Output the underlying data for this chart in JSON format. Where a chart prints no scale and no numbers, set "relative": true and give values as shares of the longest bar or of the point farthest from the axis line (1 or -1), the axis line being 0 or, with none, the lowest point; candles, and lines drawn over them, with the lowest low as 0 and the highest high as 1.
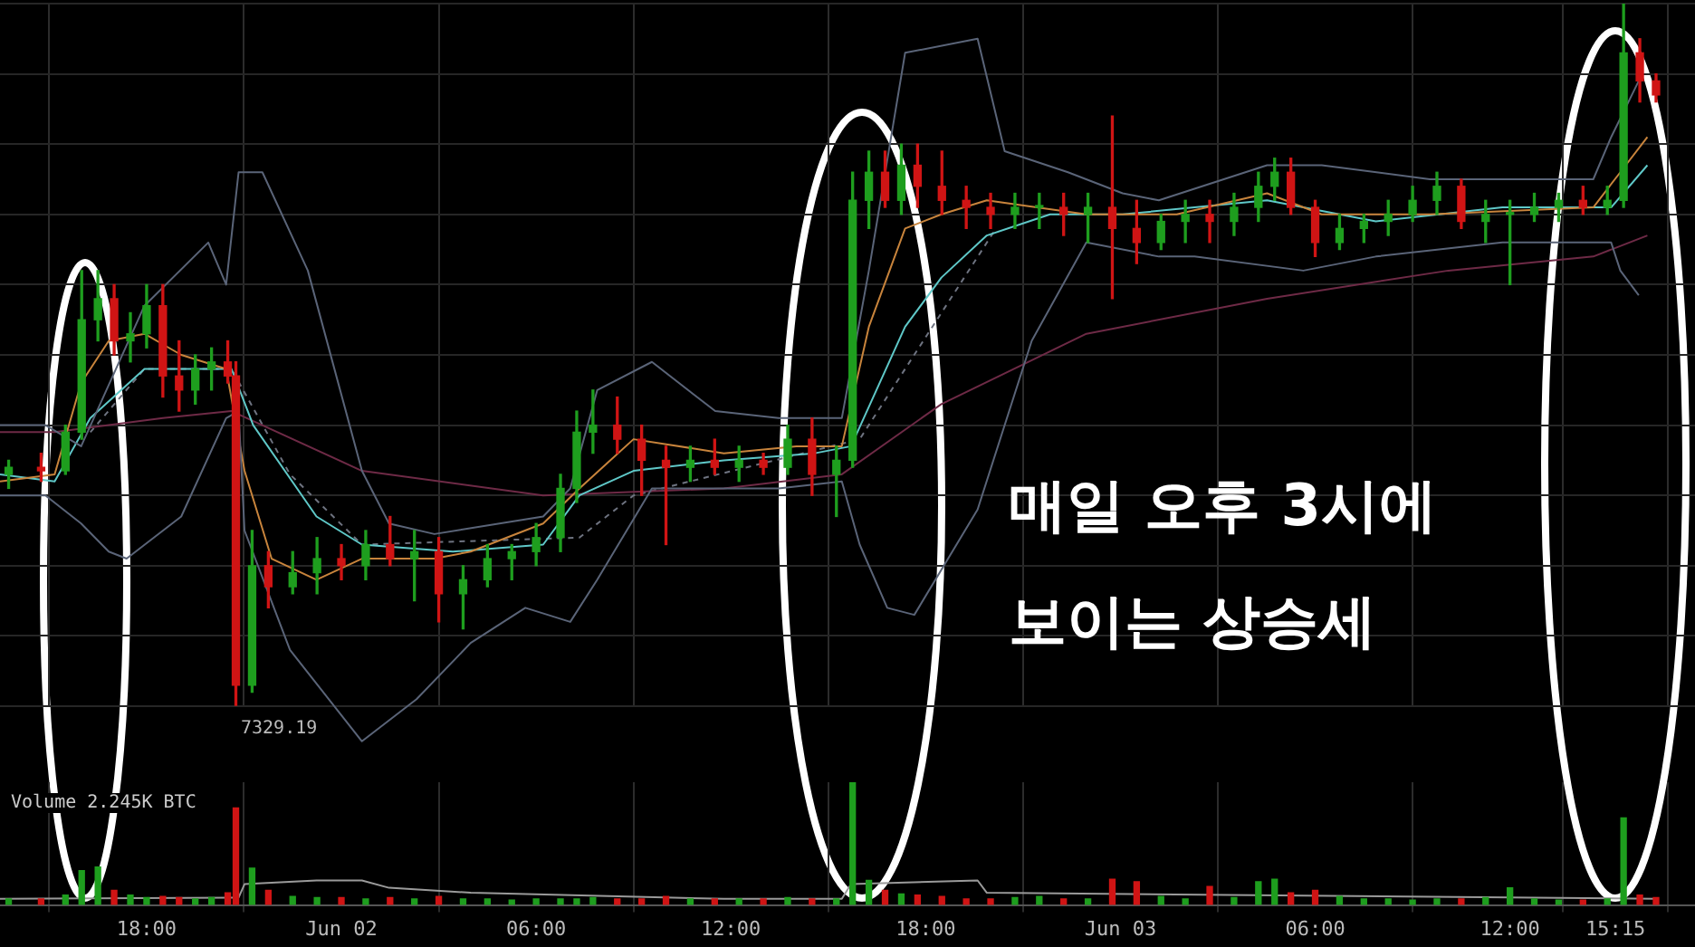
{
  "chart_data": [
    {
      "type": "candlestick",
      "relative": true,
      "tick_labels": false,
      "grid": true,
      "xlim": [
        "--06-01T13:29",
        "--06-03T17:42"
      ],
      "xticks": [
        {
          "value": "--06-01T18:00",
          "label": null
        },
        {
          "value": "--06-02T00:00",
          "label": null
        },
        {
          "value": "--06-02T06:00",
          "label": null
        },
        {
          "value": "--06-02T12:00",
          "label": null
        },
        {
          "value": "--06-02T18:00",
          "label": null
        },
        {
          "value": "--06-03T00:00",
          "label": null
        },
        {
          "value": "--06-03T06:00",
          "label": null
        },
        {
          "value": "--06-03T12:00",
          "label": null
        },
        {
          "value": "--06-03T15:15",
          "label": null
        }
      ],
      "x": [
        "--06-01T13:45",
        "--06-01T14:45",
        "--06-01T15:30",
        "--06-01T16:00",
        "--06-01T16:30",
        "--06-01T17:00",
        "--06-01T17:30",
        "--06-01T18:00",
        "--06-01T18:30",
        "--06-01T19:00",
        "--06-01T19:30",
        "--06-01T20:00",
        "--06-01T20:30",
        "--06-01T20:45",
        "--06-01T21:15",
        "--06-01T21:45",
        "--06-01T22:30",
        "--06-01T23:15",
        "--06-02T00:00",
        "--06-02T00:45",
        "--06-02T01:30",
        "--06-02T02:15",
        "--06-02T03:00",
        "--06-02T03:45",
        "--06-02T04:30",
        "--06-02T05:15",
        "--06-02T06:00",
        "--06-02T06:45",
        "--06-02T07:15",
        "--06-02T07:45",
        "--06-02T08:30",
        "--06-02T09:15",
        "--06-02T10:00",
        "--06-02T10:45",
        "--06-02T11:30",
        "--06-02T12:15",
        "--06-02T13:00",
        "--06-02T13:45",
        "--06-02T14:30",
        "--06-02T15:15",
        "--06-02T15:45",
        "--06-02T16:15",
        "--06-02T16:45",
        "--06-02T17:15",
        "--06-02T17:45",
        "--06-02T18:30",
        "--06-02T19:15",
        "--06-02T20:00",
        "--06-02T20:45",
        "--06-02T21:30",
        "--06-02T22:15",
        "--06-02T23:00",
        "--06-02T23:45",
        "--06-03T00:30",
        "--06-03T01:15",
        "--06-03T02:00",
        "--06-03T02:45",
        "--06-03T03:30",
        "--06-03T04:15",
        "--06-03T04:45",
        "--06-03T05:15",
        "--06-03T06:00",
        "--06-03T06:45",
        "--06-03T07:30",
        "--06-03T08:15",
        "--06-03T09:00",
        "--06-03T09:45",
        "--06-03T10:30",
        "--06-03T11:15",
        "--06-03T12:00",
        "--06-03T12:45",
        "--06-03T13:30",
        "--06-03T14:15",
        "--06-03T15:00",
        "--06-03T15:30",
        "--06-03T16:00",
        "--06-03T16:30"
      ],
      "ohlc": [
        [
          0.33,
          0.35,
          0.31,
          0.34
        ],
        [
          0.34,
          0.36,
          0.32,
          0.335
        ],
        [
          0.335,
          0.4,
          0.33,
          0.39
        ],
        [
          0.39,
          0.62,
          0.38,
          0.55
        ],
        [
          0.55,
          0.62,
          0.52,
          0.58
        ],
        [
          0.58,
          0.6,
          0.5,
          0.52
        ],
        [
          0.52,
          0.56,
          0.49,
          0.53
        ],
        [
          0.53,
          0.6,
          0.51,
          0.57
        ],
        [
          0.57,
          0.6,
          0.44,
          0.47
        ],
        [
          0.47,
          0.52,
          0.42,
          0.45
        ],
        [
          0.45,
          0.5,
          0.43,
          0.48
        ],
        [
          0.48,
          0.51,
          0.45,
          0.49
        ],
        [
          0.49,
          0.52,
          0.46,
          0.47
        ],
        [
          0.47,
          0.49,
          0,
          0.03
        ],
        [
          0.03,
          0.25,
          0.02,
          0.2
        ],
        [
          0.2,
          0.22,
          0.14,
          0.17
        ],
        [
          0.17,
          0.22,
          0.16,
          0.19
        ],
        [
          0.19,
          0.24,
          0.16,
          0.21
        ],
        [
          0.21,
          0.23,
          0.18,
          0.2
        ],
        [
          0.2,
          0.25,
          0.18,
          0.23
        ],
        [
          0.23,
          0.27,
          0.2,
          0.21
        ],
        [
          0.21,
          0.25,
          0.15,
          0.22
        ],
        [
          0.22,
          0.24,
          0.12,
          0.16
        ],
        [
          0.16,
          0.2,
          0.11,
          0.18
        ],
        [
          0.18,
          0.23,
          0.17,
          0.21
        ],
        [
          0.21,
          0.23,
          0.18,
          0.22
        ],
        [
          0.22,
          0.26,
          0.2,
          0.24
        ],
        [
          0.24,
          0.33,
          0.22,
          0.31
        ],
        [
          0.31,
          0.42,
          0.29,
          0.39
        ],
        [
          0.39,
          0.45,
          0.36,
          0.4
        ],
        [
          0.4,
          0.44,
          0.36,
          0.38
        ],
        [
          0.38,
          0.4,
          0.3,
          0.35
        ],
        [
          0.35,
          0.37,
          0.23,
          0.34
        ],
        [
          0.34,
          0.37,
          0.32,
          0.35
        ],
        [
          0.35,
          0.38,
          0.33,
          0.34
        ],
        [
          0.34,
          0.37,
          0.32,
          0.35
        ],
        [
          0.35,
          0.36,
          0.33,
          0.34
        ],
        [
          0.34,
          0.4,
          0.33,
          0.38
        ],
        [
          0.38,
          0.41,
          0.3,
          0.33
        ],
        [
          0.33,
          0.37,
          0.27,
          0.35
        ],
        [
          0.35,
          0.76,
          0.34,
          0.72
        ],
        [
          0.72,
          0.79,
          0.68,
          0.76
        ],
        [
          0.76,
          0.79,
          0.71,
          0.72
        ],
        [
          0.72,
          0.8,
          0.7,
          0.77
        ],
        [
          0.77,
          0.8,
          0.71,
          0.74
        ],
        [
          0.74,
          0.79,
          0.7,
          0.72
        ],
        [
          0.72,
          0.74,
          0.68,
          0.71
        ],
        [
          0.71,
          0.73,
          0.68,
          0.7
        ],
        [
          0.7,
          0.73,
          0.68,
          0.71
        ],
        [
          0.71,
          0.73,
          0.68,
          0.71
        ],
        [
          0.71,
          0.73,
          0.67,
          0.7
        ],
        [
          0.7,
          0.73,
          0.66,
          0.71
        ],
        [
          0.71,
          0.84,
          0.58,
          0.68
        ],
        [
          0.68,
          0.72,
          0.63,
          0.66
        ],
        [
          0.66,
          0.7,
          0.65,
          0.69
        ],
        [
          0.69,
          0.72,
          0.66,
          0.7
        ],
        [
          0.7,
          0.72,
          0.66,
          0.69
        ],
        [
          0.69,
          0.73,
          0.67,
          0.71
        ],
        [
          0.71,
          0.76,
          0.69,
          0.74
        ],
        [
          0.74,
          0.78,
          0.72,
          0.76
        ],
        [
          0.76,
          0.78,
          0.7,
          0.71
        ],
        [
          0.71,
          0.72,
          0.64,
          0.66
        ],
        [
          0.66,
          0.7,
          0.65,
          0.68
        ],
        [
          0.68,
          0.7,
          0.66,
          0.69
        ],
        [
          0.69,
          0.72,
          0.67,
          0.7
        ],
        [
          0.7,
          0.74,
          0.69,
          0.72
        ],
        [
          0.72,
          0.76,
          0.7,
          0.74
        ],
        [
          0.74,
          0.75,
          0.68,
          0.69
        ],
        [
          0.69,
          0.72,
          0.66,
          0.7
        ],
        [
          0.7,
          0.72,
          0.6,
          0.7
        ],
        [
          0.7,
          0.73,
          0.69,
          0.71
        ],
        [
          0.71,
          0.73,
          0.69,
          0.72
        ],
        [
          0.72,
          0.74,
          0.7,
          0.71
        ],
        [
          0.71,
          0.74,
          0.7,
          0.72
        ],
        [
          0.72,
          1,
          0.71,
          0.93
        ],
        [
          0.93,
          0.95,
          0.86,
          0.89
        ],
        [
          0.89,
          0.9,
          0.86,
          0.87
        ]
      ],
      "colors": [
        "#1e9e1e",
        "#d01414",
        "#1e9e1e",
        "#1e9e1e",
        "#1e9e1e",
        "#d01414",
        "#1e9e1e",
        "#1e9e1e",
        "#d01414",
        "#d01414",
        "#1e9e1e",
        "#1e9e1e",
        "#d01414",
        "#d01414",
        "#1e9e1e",
        "#d01414",
        "#1e9e1e",
        "#1e9e1e",
        "#d01414",
        "#1e9e1e",
        "#d01414",
        "#1e9e1e",
        "#d01414",
        "#1e9e1e",
        "#1e9e1e",
        "#1e9e1e",
        "#1e9e1e",
        "#1e9e1e",
        "#1e9e1e",
        "#1e9e1e",
        "#d01414",
        "#d01414",
        "#d01414",
        "#1e9e1e",
        "#d01414",
        "#1e9e1e",
        "#d01414",
        "#1e9e1e",
        "#d01414",
        "#1e9e1e",
        "#1e9e1e",
        "#1e9e1e",
        "#d01414",
        "#1e9e1e",
        "#d01414",
        "#d01414",
        "#d01414",
        "#d01414",
        "#1e9e1e",
        "#1e9e1e",
        "#d01414",
        "#1e9e1e",
        "#d01414",
        "#d01414",
        "#1e9e1e",
        "#1e9e1e",
        "#d01414",
        "#1e9e1e",
        "#1e9e1e",
        "#1e9e1e",
        "#d01414",
        "#d01414",
        "#1e9e1e",
        "#1e9e1e",
        "#1e9e1e",
        "#1e9e1e",
        "#1e9e1e",
        "#d01414",
        "#1e9e1e",
        "#1e9e1e",
        "#1e9e1e",
        "#1e9e1e",
        "#d01414",
        "#1e9e1e",
        "#1e9e1e",
        "#d01414",
        "#d01414"
      ],
      "series": [
        {
          "type": "line",
          "color": "#5a6478",
          "x": [
            "--06-01T13:29",
            "--06-01T14:53",
            "--06-01T15:59",
            "--06-01T17:56",
            "--06-01T19:54",
            "--06-01T20:27",
            "--06-01T20:50",
            "--06-01T21:34",
            "--06-01T22:58",
            "--06-02T00:38",
            "--06-02T01:28",
            "--06-02T02:52",
            "--06-02T06:13",
            "--06-02T07:03",
            "--06-02T07:53",
            "--06-02T09:34",
            "--06-02T11:31",
            "--06-02T13:28",
            "--06-02T15:25",
            "--06-02T16:15",
            "--06-02T17:22",
            "--06-02T19:36",
            "--06-02T20:26",
            "--06-02T22:23",
            "--06-03T00:04",
            "--06-03T01:11",
            "--06-03T04:31",
            "--06-03T06:12",
            "--06-03T09:32",
            "--06-03T14:34",
            "--06-03T15:07",
            "--06-03T15:58"
          ],
          "values": [
            0.4,
            0.4,
            0.37,
            0.57,
            0.66,
            0.6,
            0.76,
            0.76,
            0.62,
            0.335,
            0.26,
            0.245,
            0.27,
            0.31,
            0.45,
            0.49,
            0.42,
            0.41,
            0.41,
            0.62,
            0.93,
            0.95,
            0.79,
            0.76,
            0.73,
            0.72,
            0.77,
            0.77,
            0.75,
            0.75,
            0.81,
            0.89
          ]
        },
        {
          "type": "line",
          "color": "#5a6478",
          "x": [
            "--06-01T13:29",
            "--06-01T14:53",
            "--06-01T15:59",
            "--06-01T16:50",
            "--06-01T17:23",
            "--06-01T19:04",
            "--06-01T20:27",
            "--06-01T20:50",
            "--06-01T21:01",
            "--06-01T22:25",
            "--06-02T00:38",
            "--06-02T02:19",
            "--06-02T03:59",
            "--06-02T05:40",
            "--06-02T07:03",
            "--06-02T07:53",
            "--06-02T09:34",
            "--06-02T11:47",
            "--06-02T13:28",
            "--06-02T15:25",
            "--06-02T15:58",
            "--06-02T16:49",
            "--06-02T17:39",
            "--06-02T19:36",
            "--06-02T21:16",
            "--06-02T22:57",
            "--06-03T01:11",
            "--06-03T02:17",
            "--06-03T05:38",
            "--06-03T07:52",
            "--06-03T11:46",
            "--06-03T15:07",
            "--06-03T15:24",
            "--06-03T15:58"
          ],
          "values": [
            0.3,
            0.3,
            0.26,
            0.22,
            0.21,
            0.27,
            0.41,
            0.42,
            0.25,
            0.08,
            -0.05,
            0.01,
            0.09,
            0.14,
            0.12,
            0.18,
            0.31,
            0.31,
            0.31,
            0.32,
            0.23,
            0.14,
            0.13,
            0.28,
            0.52,
            0.66,
            0.64,
            0.64,
            0.62,
            0.64,
            0.66,
            0.66,
            0.62,
            0.585
          ]
        },
        {
          "type": "line",
          "color": "#c8843c",
          "x": [
            "--06-01T13:29",
            "--06-01T15:10",
            "--06-01T15:59",
            "--06-01T16:50",
            "--06-01T17:56",
            "--06-01T19:04",
            "--06-01T20:27",
            "--06-01T21:01",
            "--06-01T21:51",
            "--06-01T23:14",
            "--06-02T00:38",
            "--06-02T02:52",
            "--06-02T03:59",
            "--06-02T06:13",
            "--06-02T07:20",
            "--06-02T09:00",
            "--06-02T11:47",
            "--06-02T14:01",
            "--06-02T15:25",
            "--06-02T16:15",
            "--06-02T17:22",
            "--06-02T18:29",
            "--06-02T19:53",
            "--06-02T22:57",
            "--06-03T01:44",
            "--06-03T04:31",
            "--06-03T06:12",
            "--06-03T09:32",
            "--06-03T14:34",
            "--06-03T15:24",
            "--06-03T16:14"
          ],
          "values": [
            0.32,
            0.33,
            0.46,
            0.52,
            0.53,
            0.5,
            0.48,
            0.335,
            0.21,
            0.18,
            0.21,
            0.21,
            0.22,
            0.26,
            0.31,
            0.38,
            0.36,
            0.37,
            0.37,
            0.54,
            0.68,
            0.7,
            0.72,
            0.7,
            0.7,
            0.73,
            0.7,
            0.7,
            0.71,
            0.76,
            0.81
          ]
        },
        {
          "type": "line",
          "color": "#5fc8c8",
          "x": [
            "--06-01T13:29",
            "--06-01T15:10",
            "--06-01T16:16",
            "--06-01T17:56",
            "--06-01T20:11",
            "--06-01T20:37",
            "--06-01T21:17",
            "--06-01T23:14",
            "--06-02T00:38",
            "--06-02T03:26",
            "--06-02T06:13",
            "--06-02T07:20",
            "--06-02T09:00",
            "--06-02T11:47",
            "--06-02T14:35",
            "--06-02T15:42",
            "--06-02T17:22",
            "--06-02T18:29",
            "--06-02T19:53",
            "--06-02T21:50",
            "--06-03T00:04",
            "--06-03T04:31",
            "--06-03T07:52",
            "--06-03T11:46",
            "--06-03T15:07",
            "--06-03T16:14"
          ],
          "values": [
            0.33,
            0.32,
            0.41,
            0.48,
            0.48,
            0.48,
            0.4,
            0.27,
            0.23,
            0.22,
            0.23,
            0.3,
            0.335,
            0.35,
            0.36,
            0.37,
            0.54,
            0.61,
            0.67,
            0.7,
            0.7,
            0.72,
            0.69,
            0.71,
            0.71,
            0.77
          ]
        },
        {
          "type": "line",
          "color": "#6e2a46",
          "x": [
            "--06-01T13:29",
            "--06-01T15:10",
            "--06-01T16:50",
            "--06-01T18:30",
            "--06-01T20:37",
            "--06-02T00:38",
            "--06-02T06:13",
            "--06-02T11:47",
            "--06-02T15:25",
            "--06-02T18:29",
            "--06-02T22:57",
            "--06-03T04:31",
            "--06-03T10:06",
            "--06-03T14:34",
            "--06-03T16:14"
          ],
          "values": [
            0.39,
            0.39,
            0.4,
            0.41,
            0.42,
            0.335,
            0.3,
            0.31,
            0.33,
            0.43,
            0.53,
            0.58,
            0.62,
            0.64,
            0.67
          ]
        },
        {
          "type": "line",
          "color": "#6e7380",
          "line_style": "dashed",
          "x": [
            "--06-01T16:16",
            "--06-01T17:56",
            "--06-01T20:37",
            "--06-01T22:25",
            "--06-02T00:38",
            "--06-02T07:20",
            "--06-02T09:00",
            "--06-02T15:58",
            "--06-02T20:10"
          ],
          "values": [
            0.39,
            0.48,
            0.48,
            0.33,
            0.23,
            0.24,
            0.3,
            0.38,
            0.68
          ]
        }
      ],
      "annotations": [
        "7329.19",
        "매일 오후 3시에",
        "보이는 상승세"
      ]
    },
    {
      "type": "bar",
      "relative": true,
      "tick_labels": "x",
      "grid": "x",
      "title": "Volume 2.245K BTC",
      "xlim": [
        "--06-01T13:29",
        "--06-03T17:42"
      ],
      "xticks": [
        {
          "value": "--06-01T18:00",
          "label": "18:00"
        },
        {
          "value": "--06-02T00:00",
          "label": "Jun 02"
        },
        {
          "value": "--06-02T06:00",
          "label": "06:00"
        },
        {
          "value": "--06-02T12:00",
          "label": "12:00"
        },
        {
          "value": "--06-02T18:00",
          "label": "18:00"
        },
        {
          "value": "--06-03T00:00",
          "label": "Jun 03"
        },
        {
          "value": "--06-03T06:00",
          "label": "06:00"
        },
        {
          "value": "--06-03T12:00",
          "label": "12:00"
        },
        {
          "value": "--06-03T15:15",
          "label": "15:15"
        }
      ],
      "x": [
        "--06-01T13:45",
        "--06-01T14:45",
        "--06-01T15:30",
        "--06-01T16:00",
        "--06-01T16:30",
        "--06-01T17:00",
        "--06-01T17:30",
        "--06-01T18:00",
        "--06-01T18:30",
        "--06-01T19:00",
        "--06-01T19:30",
        "--06-01T20:00",
        "--06-01T20:30",
        "--06-01T20:45",
        "--06-01T21:15",
        "--06-01T21:45",
        "--06-01T22:30",
        "--06-01T23:15",
        "--06-02T00:00",
        "--06-02T00:45",
        "--06-02T01:30",
        "--06-02T02:15",
        "--06-02T03:00",
        "--06-02T03:45",
        "--06-02T04:30",
        "--06-02T05:15",
        "--06-02T06:00",
        "--06-02T06:45",
        "--06-02T07:15",
        "--06-02T07:45",
        "--06-02T08:30",
        "--06-02T09:15",
        "--06-02T10:00",
        "--06-02T10:45",
        "--06-02T11:30",
        "--06-02T12:15",
        "--06-02T13:00",
        "--06-02T13:45",
        "--06-02T14:30",
        "--06-02T15:15",
        "--06-02T15:45",
        "--06-02T16:15",
        "--06-02T16:45",
        "--06-02T17:15",
        "--06-02T17:45",
        "--06-02T18:30",
        "--06-02T19:15",
        "--06-02T20:00",
        "--06-02T20:45",
        "--06-02T21:30",
        "--06-02T22:15",
        "--06-02T23:00",
        "--06-02T23:45",
        "--06-03T00:30",
        "--06-03T01:15",
        "--06-03T02:00",
        "--06-03T02:45",
        "--06-03T03:30",
        "--06-03T04:15",
        "--06-03T04:45",
        "--06-03T05:15",
        "--06-03T06:00",
        "--06-03T06:45",
        "--06-03T07:30",
        "--06-03T08:15",
        "--06-03T09:00",
        "--06-03T09:45",
        "--06-03T10:30",
        "--06-03T11:15",
        "--06-03T12:00",
        "--06-03T12:45",
        "--06-03T13:30",
        "--06-03T14:15",
        "--06-03T15:00",
        "--06-03T15:30",
        "--06-03T16:00",
        "--06-03T16:30"
      ],
      "series": [
        {
          "type": "bar",
          "colors": [
            "#1e9e1e",
            "#d01414",
            "#1e9e1e",
            "#1e9e1e",
            "#1e9e1e",
            "#d01414",
            "#1e9e1e",
            "#1e9e1e",
            "#d01414",
            "#d01414",
            "#1e9e1e",
            "#1e9e1e",
            "#d01414",
            "#d01414",
            "#1e9e1e",
            "#d01414",
            "#1e9e1e",
            "#1e9e1e",
            "#d01414",
            "#1e9e1e",
            "#d01414",
            "#1e9e1e",
            "#d01414",
            "#1e9e1e",
            "#1e9e1e",
            "#1e9e1e",
            "#1e9e1e",
            "#1e9e1e",
            "#1e9e1e",
            "#1e9e1e",
            "#d01414",
            "#d01414",
            "#d01414",
            "#1e9e1e",
            "#d01414",
            "#1e9e1e",
            "#d01414",
            "#1e9e1e",
            "#d01414",
            "#1e9e1e",
            "#1e9e1e",
            "#1e9e1e",
            "#d01414",
            "#1e9e1e",
            "#d01414",
            "#d01414",
            "#d01414",
            "#d01414",
            "#1e9e1e",
            "#1e9e1e",
            "#d01414",
            "#1e9e1e",
            "#d01414",
            "#d01414",
            "#1e9e1e",
            "#1e9e1e",
            "#d01414",
            "#1e9e1e",
            "#1e9e1e",
            "#1e9e1e",
            "#d01414",
            "#d01414",
            "#1e9e1e",
            "#1e9e1e",
            "#1e9e1e",
            "#1e9e1e",
            "#1e9e1e",
            "#d01414",
            "#1e9e1e",
            "#1e9e1e",
            "#1e9e1e",
            "#1e9e1e",
            "#d01414",
            "#1e9e1e",
            "#1e9e1e",
            "#d01414",
            "#d01414"
          ],
          "values": [
            0.05,
            0.05,
            0.08,
            0.28,
            0.31,
            0.12,
            0.08,
            0.06,
            0.07,
            0.06,
            0.05,
            0.06,
            0.1,
            0.79,
            0.3,
            0.12,
            0.07,
            0.06,
            0.06,
            0.05,
            0.06,
            0.05,
            0.07,
            0.05,
            0.05,
            0.04,
            0.05,
            0.05,
            0.05,
            0.06,
            0.05,
            0.05,
            0.07,
            0.05,
            0.05,
            0.05,
            0.05,
            0.06,
            0.05,
            0.05,
            1,
            0.2,
            0.12,
            0.09,
            0.08,
            0.07,
            0.05,
            0.05,
            0.06,
            0.07,
            0.05,
            0.05,
            0.21,
            0.19,
            0.07,
            0.05,
            0.15,
            0.06,
            0.19,
            0.21,
            0.1,
            0.12,
            0.07,
            0.05,
            0.05,
            0.04,
            0.05,
            0.05,
            0.06,
            0.14,
            0.05,
            0.04,
            0.04,
            0.05,
            0.71,
            0.08,
            0.06
          ]
        },
        {
          "type": "line",
          "color": "#9a9a9a",
          "x": [
            "--06-01T13:29",
            "--06-01T20:50",
            "--06-01T21:01",
            "--06-01T23:14",
            "--06-02T00:38",
            "--06-02T01:28",
            "--06-02T03:59",
            "--06-02T11:47",
            "--06-02T15:25",
            "--06-02T15:42",
            "--06-02T19:36",
            "--06-02T19:53",
            "--06-03T16:30"
          ],
          "values": [
            0.05,
            0.06,
            0.17,
            0.2,
            0.2,
            0.14,
            0.1,
            0.05,
            0.05,
            0.17,
            0.2,
            0.1,
            0.05
          ]
        }
      ]
    }
  ]
}
